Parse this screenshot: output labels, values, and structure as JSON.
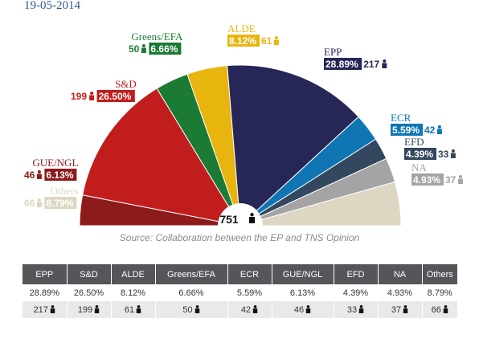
{
  "date": "19-05-2014",
  "source": "Source: Collaboration between the EP and TNS Opinion",
  "total_seats": "751",
  "chart_data": {
    "type": "pie",
    "subtype": "hemicycle",
    "total_seats": 751,
    "series": [
      {
        "name": "GUE/NGL",
        "percent": "6.13%",
        "seats": 46,
        "color": "#8d1b1b"
      },
      {
        "name": "S&D",
        "percent": "26.50%",
        "seats": 199,
        "color": "#c11d1d"
      },
      {
        "name": "Greens/EFA",
        "percent": "6.66%",
        "seats": 50,
        "color": "#1b7a34"
      },
      {
        "name": "ALDE",
        "percent": "8.12%",
        "seats": 61,
        "color": "#e8b50f"
      },
      {
        "name": "EPP",
        "percent": "28.89%",
        "seats": 217,
        "color": "#262657"
      },
      {
        "name": "ECR",
        "percent": "5.59%",
        "seats": 42,
        "color": "#0f76b3"
      },
      {
        "name": "EFD",
        "percent": "4.39%",
        "seats": 33,
        "color": "#33475e"
      },
      {
        "name": "NA",
        "percent": "4.93%",
        "seats": 37,
        "color": "#a4a4a4"
      },
      {
        "name": "Others",
        "percent": "8.79%",
        "seats": 66,
        "color": "#dcd6c3"
      }
    ]
  },
  "table": {
    "headers": [
      "EPP",
      "S&D",
      "ALDE",
      "Greens/EFA",
      "ECR",
      "GUE/NGL",
      "EFD",
      "NA",
      "Others"
    ],
    "percents": [
      "28.89%",
      "26.50%",
      "8.12%",
      "6.66%",
      "5.59%",
      "6.13%",
      "4.39%",
      "4.93%",
      "8.79%"
    ],
    "seats": [
      "217",
      "199",
      "61",
      "50",
      "42",
      "46",
      "33",
      "37",
      "66"
    ]
  },
  "icons": {
    "seat": "person-icon"
  }
}
